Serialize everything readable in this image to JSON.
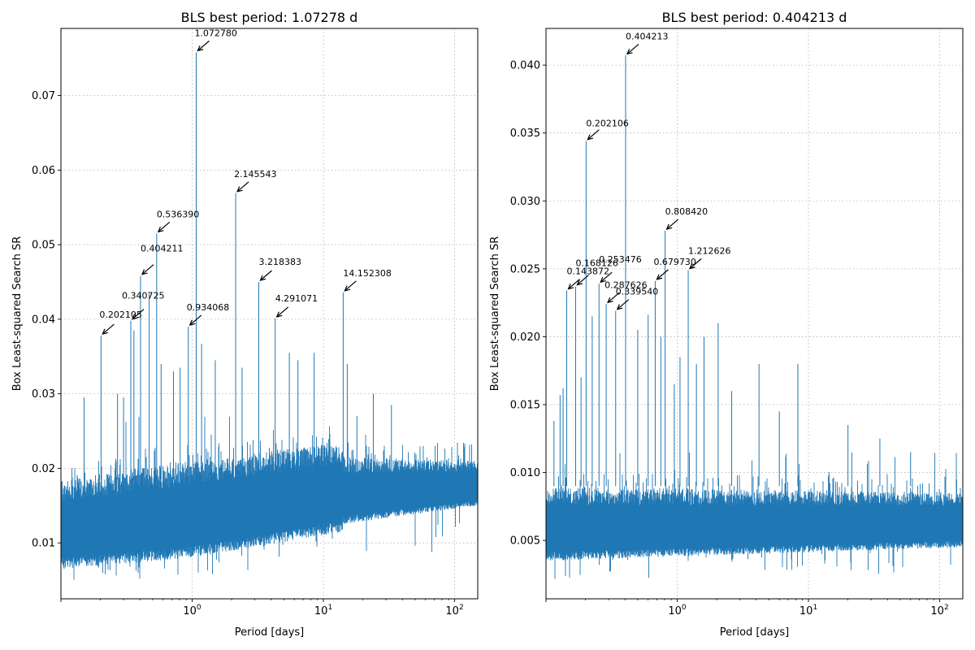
{
  "chart_data": [
    {
      "type": "line",
      "title": "BLS best period: 1.07278 d",
      "xlabel": "Period [days]",
      "ylabel": "Box Least-squared Search SR",
      "xscale": "log",
      "xlim": [
        0.1,
        150
      ],
      "ylim": [
        0.0025,
        0.079
      ],
      "grid": true,
      "series_color": "#1f77b4",
      "xticks": [
        {
          "value": 1,
          "label": "10^0"
        },
        {
          "value": 10,
          "label": "10^1"
        },
        {
          "value": 100,
          "label": "10^2"
        }
      ],
      "yticks": [
        {
          "value": 0.01,
          "label": "0.01"
        },
        {
          "value": 0.02,
          "label": "0.02"
        },
        {
          "value": 0.03,
          "label": "0.03"
        },
        {
          "value": 0.04,
          "label": "0.04"
        },
        {
          "value": 0.05,
          "label": "0.05"
        },
        {
          "value": 0.06,
          "label": "0.06"
        },
        {
          "value": 0.07,
          "label": "0.07"
        }
      ],
      "noise_floor": {
        "segments": [
          {
            "p0": 0.1,
            "p1": 1.0,
            "low0": 0.0065,
            "low1": 0.008,
            "top0": 0.0185,
            "top1": 0.021
          },
          {
            "p0": 1.0,
            "p1": 14.0,
            "low0": 0.008,
            "low1": 0.0115,
            "top0": 0.021,
            "top1": 0.0235
          },
          {
            "p0": 14.0,
            "p1": 150,
            "low0": 0.0125,
            "low1": 0.015,
            "top0": 0.0215,
            "top1": 0.021
          }
        ],
        "spike_max": 0.027
      },
      "spikes": [
        {
          "period": 0.202105,
          "value": 0.0378
        },
        {
          "period": 0.340725,
          "value": 0.0398
        },
        {
          "period": 0.404211,
          "value": 0.0458
        },
        {
          "period": 0.53639,
          "value": 0.0515
        },
        {
          "period": 0.934068,
          "value": 0.039
        },
        {
          "period": 1.07278,
          "value": 0.0758
        },
        {
          "period": 2.145543,
          "value": 0.0569
        },
        {
          "period": 3.218383,
          "value": 0.045
        },
        {
          "period": 4.291071,
          "value": 0.0401
        },
        {
          "period": 14.152308,
          "value": 0.0436
        },
        {
          "period": 0.15,
          "value": 0.0295
        },
        {
          "period": 0.27,
          "value": 0.03
        },
        {
          "period": 0.3,
          "value": 0.0295
        },
        {
          "period": 0.36,
          "value": 0.0385
        },
        {
          "period": 0.47,
          "value": 0.0435
        },
        {
          "period": 0.58,
          "value": 0.034
        },
        {
          "period": 0.72,
          "value": 0.033
        },
        {
          "period": 0.81,
          "value": 0.0335
        },
        {
          "period": 1.18,
          "value": 0.0367
        },
        {
          "period": 1.5,
          "value": 0.0345
        },
        {
          "period": 2.4,
          "value": 0.0335
        },
        {
          "period": 5.5,
          "value": 0.0355
        },
        {
          "period": 6.4,
          "value": 0.0345
        },
        {
          "period": 8.5,
          "value": 0.0355
        },
        {
          "period": 15.2,
          "value": 0.034
        },
        {
          "period": 18.0,
          "value": 0.027
        },
        {
          "period": 24.0,
          "value": 0.03
        },
        {
          "period": 33.0,
          "value": 0.0285
        }
      ],
      "annotations": [
        {
          "label": "0.202105",
          "period": 0.202105,
          "value": 0.0378
        },
        {
          "label": "0.340725",
          "period": 0.340725,
          "value": 0.0398
        },
        {
          "label": "0.404211",
          "period": 0.404211,
          "value": 0.0458
        },
        {
          "label": "0.536390",
          "period": 0.53639,
          "value": 0.0515
        },
        {
          "label": "0.934068",
          "period": 0.934068,
          "value": 0.039
        },
        {
          "label": "1.072780",
          "period": 1.07278,
          "value": 0.0758
        },
        {
          "label": "2.145543",
          "period": 2.145543,
          "value": 0.0569
        },
        {
          "label": "3.218383",
          "period": 3.218383,
          "value": 0.045
        },
        {
          "label": "4.291071",
          "period": 4.291071,
          "value": 0.0401
        },
        {
          "label": "14.152308",
          "period": 14.152308,
          "value": 0.0436
        }
      ]
    },
    {
      "type": "line",
      "title": "BLS best period: 0.404213 d",
      "xlabel": "Period [days]",
      "ylabel": "Box Least-squared Search SR",
      "xscale": "log",
      "xlim": [
        0.1,
        150
      ],
      "ylim": [
        0.0007,
        0.0427
      ],
      "grid": true,
      "series_color": "#1f77b4",
      "xticks": [
        {
          "value": 1,
          "label": "10^0"
        },
        {
          "value": 10,
          "label": "10^1"
        },
        {
          "value": 100,
          "label": "10^2"
        }
      ],
      "yticks": [
        {
          "value": 0.005,
          "label": "0.005"
        },
        {
          "value": 0.01,
          "label": "0.010"
        },
        {
          "value": 0.015,
          "label": "0.015"
        },
        {
          "value": 0.02,
          "label": "0.020"
        },
        {
          "value": 0.025,
          "label": "0.025"
        },
        {
          "value": 0.03,
          "label": "0.030"
        },
        {
          "value": 0.035,
          "label": "0.035"
        },
        {
          "value": 0.04,
          "label": "0.040"
        }
      ],
      "noise_floor": {
        "segments": [
          {
            "p0": 0.1,
            "p1": 150,
            "low0": 0.0035,
            "low1": 0.0045,
            "top0": 0.009,
            "top1": 0.0085
          }
        ],
        "spike_max": 0.0115
      },
      "spikes": [
        {
          "period": 0.143872,
          "value": 0.0234
        },
        {
          "period": 0.168126,
          "value": 0.0237
        },
        {
          "period": 0.202106,
          "value": 0.0344
        },
        {
          "period": 0.253476,
          "value": 0.0239
        },
        {
          "period": 0.287626,
          "value": 0.0224
        },
        {
          "period": 0.33954,
          "value": 0.0219
        },
        {
          "period": 0.404213,
          "value": 0.0407
        },
        {
          "period": 0.67973,
          "value": 0.0241
        },
        {
          "period": 0.80842,
          "value": 0.0278
        },
        {
          "period": 1.212626,
          "value": 0.0249
        },
        {
          "period": 0.115,
          "value": 0.0138
        },
        {
          "period": 0.128,
          "value": 0.0157
        },
        {
          "period": 0.225,
          "value": 0.0215
        },
        {
          "period": 0.5,
          "value": 0.0205
        },
        {
          "period": 0.6,
          "value": 0.0216
        },
        {
          "period": 0.75,
          "value": 0.02
        },
        {
          "period": 1.05,
          "value": 0.0185
        },
        {
          "period": 1.4,
          "value": 0.018
        },
        {
          "period": 1.6,
          "value": 0.02
        },
        {
          "period": 2.05,
          "value": 0.021
        },
        {
          "period": 2.6,
          "value": 0.016
        },
        {
          "period": 4.2,
          "value": 0.018
        },
        {
          "period": 8.3,
          "value": 0.018
        },
        {
          "period": 6.0,
          "value": 0.0145
        },
        {
          "period": 20,
          "value": 0.0135
        },
        {
          "period": 35,
          "value": 0.0125
        },
        {
          "period": 60,
          "value": 0.0115
        },
        {
          "period": 0.95,
          "value": 0.0165
        },
        {
          "period": 0.135,
          "value": 0.0162
        },
        {
          "period": 0.185,
          "value": 0.017
        }
      ],
      "annotations": [
        {
          "label": "0.143872",
          "period": 0.143872,
          "value": 0.0234
        },
        {
          "label": "0.168126",
          "period": 0.168126,
          "value": 0.0237
        },
        {
          "label": "0.202106",
          "period": 0.202106,
          "value": 0.0344
        },
        {
          "label": "0.253476",
          "period": 0.253476,
          "value": 0.0239
        },
        {
          "label": "0.287626",
          "period": 0.287626,
          "value": 0.0224
        },
        {
          "label": "0.339540",
          "period": 0.33954,
          "value": 0.0219
        },
        {
          "label": "0.404213",
          "period": 0.404213,
          "value": 0.0407
        },
        {
          "label": "0.679730",
          "period": 0.67973,
          "value": 0.0241
        },
        {
          "label": "0.808420",
          "period": 0.80842,
          "value": 0.0278
        },
        {
          "label": "1.212626",
          "period": 1.212626,
          "value": 0.0249
        }
      ]
    }
  ]
}
